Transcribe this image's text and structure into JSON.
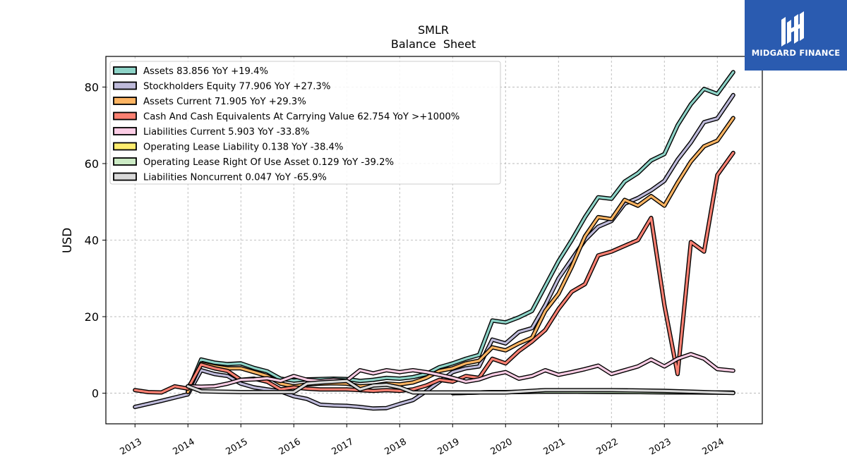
{
  "brand": {
    "name": "MIDGARD FINANCE",
    "bg": "#2a5bb0"
  },
  "chart_data": {
    "type": "line",
    "title": "SMLR",
    "subtitle": "Balance  Sheet",
    "ylabel": "USD",
    "xlabel": "",
    "xlim": [
      2012.45,
      2024.85
    ],
    "ylim": [
      -8,
      88
    ],
    "yticks": [
      0,
      20,
      40,
      60,
      80
    ],
    "xticks": [
      2013,
      2014,
      2015,
      2016,
      2017,
      2018,
      2019,
      2020,
      2021,
      2022,
      2023,
      2024
    ],
    "grid": true,
    "legend_position": "top-left",
    "series": [
      {
        "name": "Assets  83.856 YoY +19.4%",
        "color": "#8dd3c7",
        "points": [
          [
            2014.0,
            0.5
          ],
          [
            2014.25,
            8.8
          ],
          [
            2014.5,
            8.0
          ],
          [
            2014.75,
            7.6
          ],
          [
            2015.0,
            7.8
          ],
          [
            2015.25,
            6.6
          ],
          [
            2015.5,
            5.7
          ],
          [
            2015.75,
            3.8
          ],
          [
            2016.0,
            3.3
          ],
          [
            2016.25,
            3.6
          ],
          [
            2016.5,
            3.7
          ],
          [
            2016.75,
            3.8
          ],
          [
            2017.0,
            3.7
          ],
          [
            2017.25,
            3.2
          ],
          [
            2017.5,
            3.5
          ],
          [
            2017.75,
            4.0
          ],
          [
            2018.0,
            3.8
          ],
          [
            2018.25,
            4.2
          ],
          [
            2018.5,
            5.0
          ],
          [
            2018.75,
            6.8
          ],
          [
            2019.0,
            7.8
          ],
          [
            2019.25,
            9.0
          ],
          [
            2019.5,
            10.0
          ],
          [
            2019.75,
            19.0
          ],
          [
            2020.0,
            18.5
          ],
          [
            2020.25,
            19.8
          ],
          [
            2020.5,
            21.5
          ],
          [
            2020.75,
            28.0
          ],
          [
            2021.0,
            34.5
          ],
          [
            2021.25,
            40.0
          ],
          [
            2021.5,
            46.0
          ],
          [
            2021.75,
            51.2
          ],
          [
            2022.0,
            50.8
          ],
          [
            2022.25,
            55.3
          ],
          [
            2022.5,
            57.5
          ],
          [
            2022.75,
            60.8
          ],
          [
            2023.0,
            62.5
          ],
          [
            2023.25,
            70.0
          ],
          [
            2023.5,
            75.5
          ],
          [
            2023.75,
            79.5
          ],
          [
            2024.0,
            78.2
          ],
          [
            2024.3,
            83.9
          ]
        ]
      },
      {
        "name": "Stockholders Equity  77.906 YoY +27.3%",
        "color": "#bebada",
        "points": [
          [
            2013.0,
            -3.6
          ],
          [
            2013.5,
            -2.0
          ],
          [
            2014.0,
            -0.3
          ],
          [
            2014.25,
            6.0
          ],
          [
            2014.5,
            5.0
          ],
          [
            2014.75,
            4.5
          ],
          [
            2015.0,
            2.5
          ],
          [
            2015.25,
            1.5
          ],
          [
            2015.5,
            1.0
          ],
          [
            2015.75,
            0.5
          ],
          [
            2016.0,
            -0.8
          ],
          [
            2016.25,
            -1.5
          ],
          [
            2016.5,
            -3.0
          ],
          [
            2016.75,
            -3.2
          ],
          [
            2017.0,
            -3.3
          ],
          [
            2017.25,
            -3.6
          ],
          [
            2017.5,
            -4.0
          ],
          [
            2017.75,
            -3.9
          ],
          [
            2018.0,
            -2.8
          ],
          [
            2018.25,
            -1.8
          ],
          [
            2018.5,
            0.5
          ],
          [
            2018.75,
            3.0
          ],
          [
            2019.0,
            5.5
          ],
          [
            2019.25,
            6.5
          ],
          [
            2019.5,
            7.0
          ],
          [
            2019.75,
            14.0
          ],
          [
            2020.0,
            13.0
          ],
          [
            2020.25,
            16.0
          ],
          [
            2020.5,
            17.0
          ],
          [
            2020.75,
            23.0
          ],
          [
            2021.0,
            30.0
          ],
          [
            2021.25,
            35.0
          ],
          [
            2021.5,
            40.0
          ],
          [
            2021.75,
            43.5
          ],
          [
            2022.0,
            45.0
          ],
          [
            2022.25,
            49.5
          ],
          [
            2022.5,
            51.0
          ],
          [
            2022.75,
            53.0
          ],
          [
            2023.0,
            55.5
          ],
          [
            2023.25,
            61.0
          ],
          [
            2023.5,
            65.5
          ],
          [
            2023.75,
            70.8
          ],
          [
            2024.0,
            71.8
          ],
          [
            2024.3,
            77.9
          ]
        ]
      },
      {
        "name": "Assets Current  71.905 YoY +29.3%",
        "color": "#fdb462",
        "points": [
          [
            2014.0,
            0.3
          ],
          [
            2014.25,
            7.8
          ],
          [
            2014.5,
            7.0
          ],
          [
            2014.75,
            6.5
          ],
          [
            2015.0,
            6.5
          ],
          [
            2015.25,
            5.5
          ],
          [
            2015.5,
            4.5
          ],
          [
            2015.75,
            2.5
          ],
          [
            2016.0,
            1.8
          ],
          [
            2016.25,
            2.3
          ],
          [
            2016.5,
            2.5
          ],
          [
            2016.75,
            2.6
          ],
          [
            2017.0,
            2.5
          ],
          [
            2017.25,
            1.8
          ],
          [
            2017.5,
            2.0
          ],
          [
            2017.75,
            2.5
          ],
          [
            2018.0,
            2.3
          ],
          [
            2018.25,
            2.8
          ],
          [
            2018.5,
            4.0
          ],
          [
            2018.75,
            5.8
          ],
          [
            2019.0,
            6.5
          ],
          [
            2019.25,
            7.8
          ],
          [
            2019.5,
            8.5
          ],
          [
            2019.75,
            12.0
          ],
          [
            2020.0,
            11.2
          ],
          [
            2020.25,
            13.0
          ],
          [
            2020.5,
            14.5
          ],
          [
            2020.75,
            21.5
          ],
          [
            2021.0,
            26.0
          ],
          [
            2021.25,
            33.0
          ],
          [
            2021.5,
            41.0
          ],
          [
            2021.75,
            46.0
          ],
          [
            2022.0,
            45.5
          ],
          [
            2022.25,
            50.5
          ],
          [
            2022.5,
            49.0
          ],
          [
            2022.75,
            51.5
          ],
          [
            2023.0,
            49.0
          ],
          [
            2023.25,
            55.0
          ],
          [
            2023.5,
            60.5
          ],
          [
            2023.75,
            64.5
          ],
          [
            2024.0,
            66.0
          ],
          [
            2024.3,
            71.9
          ]
        ]
      },
      {
        "name": "Cash And Cash Equivalents At Carrying Value  62.754 YoY >+1000%",
        "color": "#fb8072",
        "points": [
          [
            2013.0,
            0.8
          ],
          [
            2013.25,
            0.3
          ],
          [
            2013.5,
            0.2
          ],
          [
            2013.75,
            1.8
          ],
          [
            2014.0,
            1.2
          ],
          [
            2014.25,
            7.5
          ],
          [
            2014.5,
            6.5
          ],
          [
            2014.75,
            5.8
          ],
          [
            2015.0,
            3.5
          ],
          [
            2015.25,
            3.8
          ],
          [
            2015.5,
            3.0
          ],
          [
            2015.75,
            1.0
          ],
          [
            2016.0,
            1.5
          ],
          [
            2016.25,
            1.2
          ],
          [
            2016.5,
            1.0
          ],
          [
            2016.75,
            1.0
          ],
          [
            2017.0,
            1.0
          ],
          [
            2017.25,
            0.8
          ],
          [
            2017.5,
            0.6
          ],
          [
            2017.75,
            0.8
          ],
          [
            2018.0,
            0.6
          ],
          [
            2018.25,
            1.0
          ],
          [
            2018.5,
            2.0
          ],
          [
            2018.75,
            3.5
          ],
          [
            2019.0,
            3.0
          ],
          [
            2019.25,
            4.5
          ],
          [
            2019.5,
            4.0
          ],
          [
            2019.75,
            9.0
          ],
          [
            2020.0,
            7.8
          ],
          [
            2020.25,
            11.0
          ],
          [
            2020.5,
            13.5
          ],
          [
            2020.75,
            16.5
          ],
          [
            2021.0,
            22.0
          ],
          [
            2021.25,
            26.5
          ],
          [
            2021.5,
            28.5
          ],
          [
            2021.75,
            36.0
          ],
          [
            2022.0,
            37.0
          ],
          [
            2022.25,
            38.5
          ],
          [
            2022.5,
            40.0
          ],
          [
            2022.75,
            45.8
          ],
          [
            2023.0,
            23.0
          ],
          [
            2023.25,
            5.0
          ],
          [
            2023.5,
            39.5
          ],
          [
            2023.75,
            37.0
          ],
          [
            2024.0,
            57.0
          ],
          [
            2024.3,
            62.8
          ]
        ]
      },
      {
        "name": "Liabilities Current  5.903 YoY -33.8%",
        "color": "#fccde5",
        "points": [
          [
            2014.0,
            1.8
          ],
          [
            2014.25,
            1.7
          ],
          [
            2014.5,
            1.8
          ],
          [
            2014.75,
            2.5
          ],
          [
            2015.0,
            3.5
          ],
          [
            2015.25,
            3.6
          ],
          [
            2015.5,
            3.9
          ],
          [
            2015.75,
            3.2
          ],
          [
            2016.0,
            4.5
          ],
          [
            2016.25,
            3.5
          ],
          [
            2016.5,
            3.2
          ],
          [
            2016.75,
            3.5
          ],
          [
            2017.0,
            3.3
          ],
          [
            2017.25,
            6.0
          ],
          [
            2017.5,
            5.2
          ],
          [
            2017.75,
            6.0
          ],
          [
            2018.0,
            5.5
          ],
          [
            2018.25,
            6.0
          ],
          [
            2018.5,
            5.5
          ],
          [
            2018.75,
            4.8
          ],
          [
            2019.0,
            4.0
          ],
          [
            2019.25,
            3.0
          ],
          [
            2019.5,
            3.6
          ],
          [
            2019.75,
            4.8
          ],
          [
            2020.0,
            5.5
          ],
          [
            2020.25,
            3.8
          ],
          [
            2020.5,
            4.5
          ],
          [
            2020.75,
            6.0
          ],
          [
            2021.0,
            4.8
          ],
          [
            2021.25,
            5.5
          ],
          [
            2021.5,
            6.3
          ],
          [
            2021.75,
            7.2
          ],
          [
            2022.0,
            5.0
          ],
          [
            2022.25,
            6.0
          ],
          [
            2022.5,
            7.0
          ],
          [
            2022.75,
            8.8
          ],
          [
            2023.0,
            7.0
          ],
          [
            2023.25,
            9.0
          ],
          [
            2023.5,
            10.2
          ],
          [
            2023.75,
            9.0
          ],
          [
            2024.0,
            6.3
          ],
          [
            2024.3,
            5.9
          ]
        ]
      },
      {
        "name": "Operating Lease Liability  0.138 YoY -38.4%",
        "color": "#ffed6f",
        "points": [
          [
            2019.0,
            0.0
          ],
          [
            2019.75,
            0.3
          ],
          [
            2020.0,
            0.3
          ],
          [
            2020.75,
            0.4
          ],
          [
            2021.0,
            0.4
          ],
          [
            2022.0,
            0.35
          ],
          [
            2023.0,
            0.25
          ],
          [
            2024.3,
            0.14
          ]
        ]
      },
      {
        "name": "Operating Lease Right Of Use Asset  0.129 YoY -39.2%",
        "color": "#ccebc5",
        "points": [
          [
            2019.0,
            0.0
          ],
          [
            2019.75,
            0.3
          ],
          [
            2020.0,
            0.3
          ],
          [
            2020.75,
            0.4
          ],
          [
            2021.0,
            0.4
          ],
          [
            2022.0,
            0.35
          ],
          [
            2023.0,
            0.25
          ],
          [
            2024.3,
            0.13
          ]
        ]
      },
      {
        "name": "Liabilities Noncurrent  0.047 YoY -65.9%",
        "color": "#d9d9d9",
        "points": [
          [
            2014.0,
            1.8
          ],
          [
            2014.25,
            0.5
          ],
          [
            2015.0,
            0.3
          ],
          [
            2015.75,
            0.3
          ],
          [
            2016.0,
            0.3
          ],
          [
            2016.25,
            2.5
          ],
          [
            2016.5,
            2.8
          ],
          [
            2016.75,
            3.0
          ],
          [
            2017.0,
            3.2
          ],
          [
            2017.25,
            1.0
          ],
          [
            2017.5,
            2.0
          ],
          [
            2017.75,
            2.2
          ],
          [
            2018.0,
            1.5
          ],
          [
            2018.25,
            0.2
          ],
          [
            2019.0,
            0.2
          ],
          [
            2020.0,
            0.2
          ],
          [
            2020.75,
            0.8
          ],
          [
            2021.0,
            0.8
          ],
          [
            2022.0,
            0.8
          ],
          [
            2023.0,
            0.6
          ],
          [
            2024.3,
            0.05
          ]
        ]
      }
    ]
  }
}
